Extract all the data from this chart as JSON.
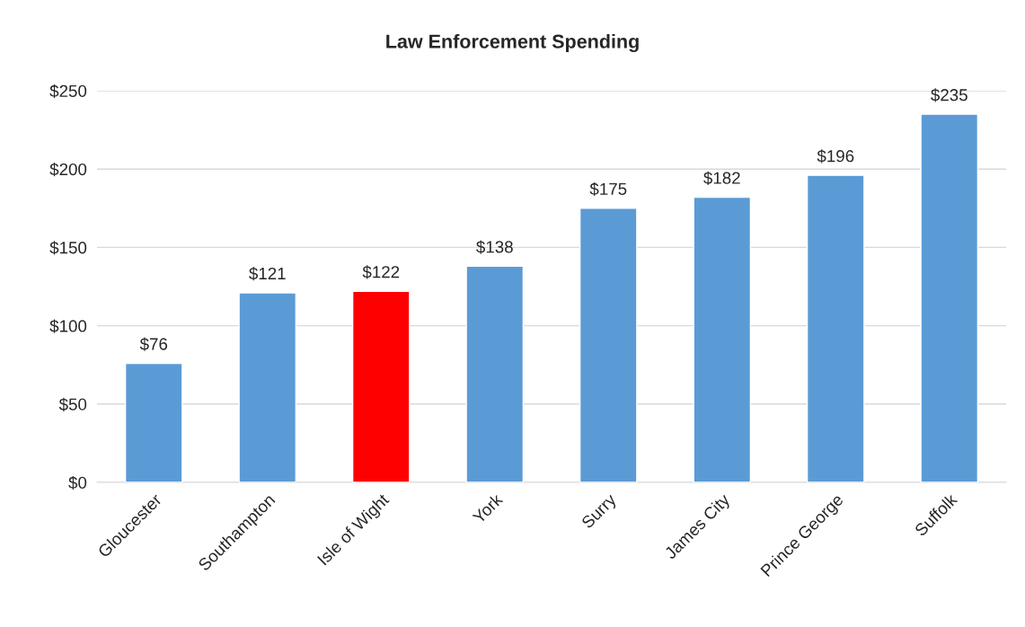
{
  "chart_data": {
    "type": "bar",
    "title": "Law Enforcement Spending",
    "categories": [
      "Gloucester",
      "Southampton",
      "Isle of Wight",
      "York",
      "Surry",
      "James City",
      "Prince George",
      "Suffolk"
    ],
    "values": [
      76,
      121,
      122,
      138,
      175,
      182,
      196,
      235
    ],
    "colors": [
      "#5b9bd5",
      "#5b9bd5",
      "#ff0000",
      "#5b9bd5",
      "#5b9bd5",
      "#5b9bd5",
      "#5b9bd5",
      "#5b9bd5"
    ],
    "value_labels": [
      "$76",
      "$121",
      "$122",
      "$138",
      "$175",
      "$182",
      "$196",
      "$235"
    ],
    "ylim": [
      0,
      250
    ],
    "yticks": [
      {
        "value": 0,
        "label": "$0"
      },
      {
        "value": 50,
        "label": "$50"
      },
      {
        "value": 100,
        "label": "$100"
      },
      {
        "value": 150,
        "label": "$150"
      },
      {
        "value": 200,
        "label": "$200"
      },
      {
        "value": 250,
        "label": "$250"
      }
    ],
    "grid": "y",
    "legend": false
  }
}
